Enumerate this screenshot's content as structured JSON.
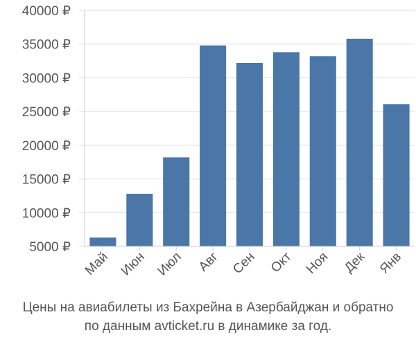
{
  "chart_data": {
    "type": "bar",
    "categories": [
      "Май",
      "Июн",
      "Июл",
      "Авг",
      "Сен",
      "Окт",
      "Ноя",
      "Дек",
      "Янв"
    ],
    "values": [
      6300,
      12800,
      18200,
      34800,
      32200,
      33800,
      33200,
      35800,
      26100
    ],
    "ylim": [
      5000,
      40000
    ],
    "yticks": [
      5000,
      10000,
      15000,
      20000,
      25000,
      30000,
      35000,
      40000
    ],
    "ytick_labels": [
      "5000 ₽",
      "10000 ₽",
      "15000 ₽",
      "20000 ₽",
      "25000 ₽",
      "30000 ₽",
      "35000 ₽",
      "40000 ₽"
    ],
    "bar_color": "#4a76a8",
    "grid_color": "#dddddd",
    "grid": true,
    "caption_lines": [
      "Цены на авиабилеты из Бахрейна в Азербайджан и обратно",
      "по данным avticket.ru в динамике за год."
    ]
  }
}
